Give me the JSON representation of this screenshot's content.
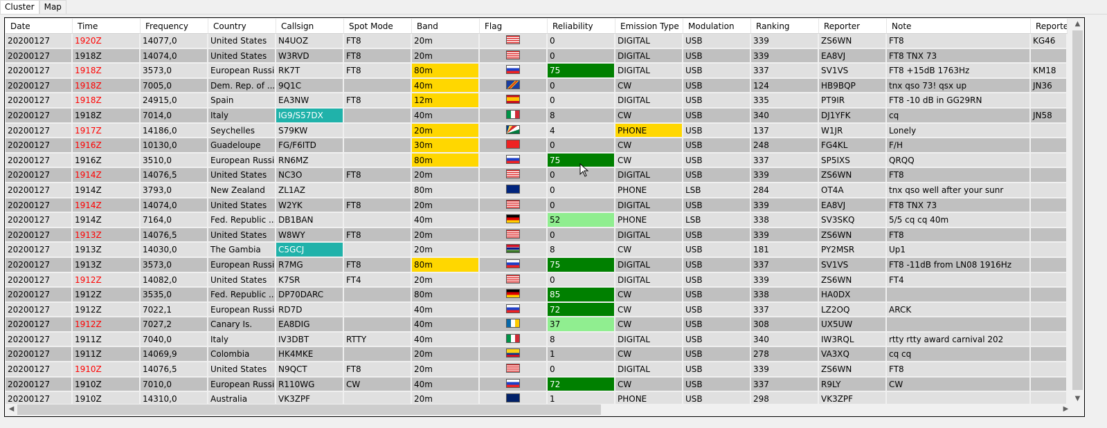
{
  "tabs": [
    "Cluster",
    "Map"
  ],
  "colors": {
    "red": "#ff0000",
    "yellow": "#ffd700",
    "green": "#008000",
    "lightgreen": "#90ee90",
    "teal": "#20b2aa"
  },
  "columns": [
    "Date",
    "Time",
    "Frequency",
    "Country",
    "Callsign",
    "Spot Mode",
    "Band",
    "Flag",
    "Reliability",
    "Emission Type",
    "Modulation",
    "Ranking",
    "Reporter",
    "Note",
    "Reporter"
  ],
  "rows": [
    {
      "cells": [
        "20200127",
        "1920Z",
        "14077,0",
        "United States",
        "N4UOZ",
        "FT8",
        "20m",
        "us",
        "0",
        "DIGITAL",
        "USB",
        "339",
        "ZS6WN",
        "FT8",
        "KG46"
      ],
      "hl": {
        "1": "red"
      }
    },
    {
      "cells": [
        "20200127",
        "1918Z",
        "14074,0",
        "United States",
        "W3RVD",
        "FT8",
        "20m",
        "us",
        "0",
        "DIGITAL",
        "USB",
        "339",
        "EA8VJ",
        "FT8 TNX 73",
        ""
      ],
      "hl": {}
    },
    {
      "cells": [
        "20200127",
        "1918Z",
        "3573,0",
        "European Russia",
        "RK7T",
        "FT8",
        "80m",
        "ru",
        "75",
        "DIGITAL",
        "USB",
        "337",
        "SV1VS",
        "FT8 +15dB 1763Hz",
        "KM18"
      ],
      "hl": {
        "1": "red",
        "6": "yellow",
        "8": "green"
      }
    },
    {
      "cells": [
        "20200127",
        "1918Z",
        "7005,0",
        "Dem. Rep. of ...",
        "9Q1C",
        "",
        "40m",
        "cd",
        "0",
        "CW",
        "USB",
        "124",
        "HB9BQP",
        "tnx qso 73! qsx up",
        "JN36"
      ],
      "hl": {
        "1": "red",
        "6": "yellow"
      }
    },
    {
      "cells": [
        "20200127",
        "1918Z",
        "24915,0",
        "Spain",
        "EA3NW",
        "FT8",
        "12m",
        "es",
        "0",
        "DIGITAL",
        "USB",
        "335",
        "PT9IR",
        "FT8 -10 dB in GG29RN",
        ""
      ],
      "hl": {
        "1": "red",
        "6": "yellow"
      }
    },
    {
      "cells": [
        "20200127",
        "1918Z",
        "7014,0",
        "Italy",
        "IG9/S57DX",
        "",
        "40m",
        "it",
        "8",
        "CW",
        "USB",
        "340",
        "DJ1YFK",
        "cq",
        "JN58"
      ],
      "hl": {
        "4": "teal"
      }
    },
    {
      "cells": [
        "20200127",
        "1917Z",
        "14186,0",
        "Seychelles",
        "S79KW",
        "",
        "20m",
        "sc",
        "4",
        "PHONE",
        "USB",
        "137",
        "W1JR",
        "Lonely",
        ""
      ],
      "hl": {
        "1": "red",
        "6": "yellow",
        "9": "yellow"
      }
    },
    {
      "cells": [
        "20200127",
        "1916Z",
        "10130,0",
        "Guadeloupe",
        "FG/F6ITD",
        "",
        "30m",
        "gp",
        "0",
        "CW",
        "USB",
        "248",
        "FG4KL",
        "F/H",
        ""
      ],
      "hl": {
        "1": "red",
        "6": "yellow"
      }
    },
    {
      "cells": [
        "20200127",
        "1916Z",
        "3510,0",
        "European Russia",
        "RN6MZ",
        "",
        "80m",
        "ru",
        "75",
        "CW",
        "USB",
        "337",
        "SP5IXS",
        "QRQQ",
        ""
      ],
      "hl": {
        "6": "yellow",
        "8": "green"
      }
    },
    {
      "cells": [
        "20200127",
        "1914Z",
        "14076,5",
        "United States",
        "NC3O",
        "FT8",
        "20m",
        "us",
        "0",
        "DIGITAL",
        "USB",
        "339",
        "ZS6WN",
        "FT8",
        ""
      ],
      "hl": {
        "1": "red"
      }
    },
    {
      "cells": [
        "20200127",
        "1914Z",
        "3793,0",
        "New Zealand",
        "ZL1AZ",
        "",
        "80m",
        "nz",
        "0",
        "PHONE",
        "LSB",
        "284",
        "OT4A",
        "tnx qso well after your sunr",
        ""
      ],
      "hl": {}
    },
    {
      "cells": [
        "20200127",
        "1914Z",
        "14074,0",
        "United States",
        "W2YK",
        "FT8",
        "20m",
        "us",
        "0",
        "DIGITAL",
        "USB",
        "339",
        "EA8VJ",
        "FT8 TNX 73",
        ""
      ],
      "hl": {
        "1": "red"
      }
    },
    {
      "cells": [
        "20200127",
        "1914Z",
        "7164,0",
        "Fed. Republic ...",
        "DB1BAN",
        "",
        "40m",
        "de",
        "52",
        "PHONE",
        "LSB",
        "338",
        "SV3SKQ",
        "5/5 cq cq 40m",
        ""
      ],
      "hl": {
        "8": "lightgreen"
      }
    },
    {
      "cells": [
        "20200127",
        "1913Z",
        "14076,5",
        "United States",
        "W8WY",
        "FT8",
        "20m",
        "us",
        "0",
        "DIGITAL",
        "USB",
        "339",
        "ZS6WN",
        "FT8",
        ""
      ],
      "hl": {
        "1": "red"
      }
    },
    {
      "cells": [
        "20200127",
        "1913Z",
        "14030,0",
        "The Gambia",
        "C5GCJ",
        "",
        "20m",
        "gm",
        "8",
        "CW",
        "USB",
        "181",
        "PY2MSR",
        "Up1",
        ""
      ],
      "hl": {
        "4": "teal"
      }
    },
    {
      "cells": [
        "20200127",
        "1913Z",
        "3573,0",
        "European Russia",
        "R7MG",
        "FT8",
        "80m",
        "ru",
        "75",
        "DIGITAL",
        "USB",
        "337",
        "SV1VS",
        "FT8 -11dB from LN08 1916Hz",
        ""
      ],
      "hl": {
        "6": "yellow",
        "8": "green"
      }
    },
    {
      "cells": [
        "20200127",
        "1912Z",
        "14082,0",
        "United States",
        "K7SR",
        "FT4",
        "20m",
        "us",
        "0",
        "DIGITAL",
        "USB",
        "339",
        "ZS6WN",
        "FT4",
        ""
      ],
      "hl": {
        "1": "red"
      }
    },
    {
      "cells": [
        "20200127",
        "1912Z",
        "3535,0",
        "Fed. Republic ...",
        "DP70DARC",
        "",
        "80m",
        "de",
        "85",
        "CW",
        "USB",
        "338",
        "HA0DX",
        "",
        ""
      ],
      "hl": {
        "8": "green"
      }
    },
    {
      "cells": [
        "20200127",
        "1912Z",
        "7022,1",
        "European Russia",
        "RD7D",
        "",
        "40m",
        "ru",
        "72",
        "CW",
        "USB",
        "337",
        "LZ2OQ",
        "ARCK",
        ""
      ],
      "hl": {
        "8": "green"
      }
    },
    {
      "cells": [
        "20200127",
        "1912Z",
        "7027,2",
        "Canary Is.",
        "EA8DIG",
        "",
        "40m",
        "ic",
        "37",
        "CW",
        "USB",
        "308",
        "UX5UW",
        "",
        ""
      ],
      "hl": {
        "1": "red",
        "8": "lightgreen"
      }
    },
    {
      "cells": [
        "20200127",
        "1911Z",
        "7040,0",
        "Italy",
        "IV3DBT",
        "RTTY",
        "40m",
        "it",
        "8",
        "DIGITAL",
        "USB",
        "340",
        "IW3RQL",
        "rtty rtty award carnival 202",
        ""
      ],
      "hl": {}
    },
    {
      "cells": [
        "20200127",
        "1911Z",
        "14069,9",
        "Colombia",
        "HK4MKE",
        "",
        "20m",
        "co",
        "1",
        "CW",
        "USB",
        "278",
        "VA3XQ",
        "cq cq",
        ""
      ],
      "hl": {}
    },
    {
      "cells": [
        "20200127",
        "1910Z",
        "14076,5",
        "United States",
        "N9QCT",
        "FT8",
        "20m",
        "us",
        "0",
        "DIGITAL",
        "USB",
        "339",
        "ZS6WN",
        "FT8",
        ""
      ],
      "hl": {
        "1": "red"
      }
    },
    {
      "cells": [
        "20200127",
        "1910Z",
        "7010,0",
        "European Russia",
        "R110WG",
        "CW",
        "40m",
        "ru",
        "72",
        "CW",
        "USB",
        "337",
        "R9LY",
        "CW",
        ""
      ],
      "hl": {
        "8": "green"
      }
    },
    {
      "cells": [
        "20200127",
        "1910Z",
        "14310,0",
        "Australia",
        "VK3ZPF",
        "",
        "20m",
        "au",
        "1",
        "PHONE",
        "USB",
        "298",
        "VK3ZPF",
        "",
        ""
      ],
      "hl": {}
    }
  ]
}
